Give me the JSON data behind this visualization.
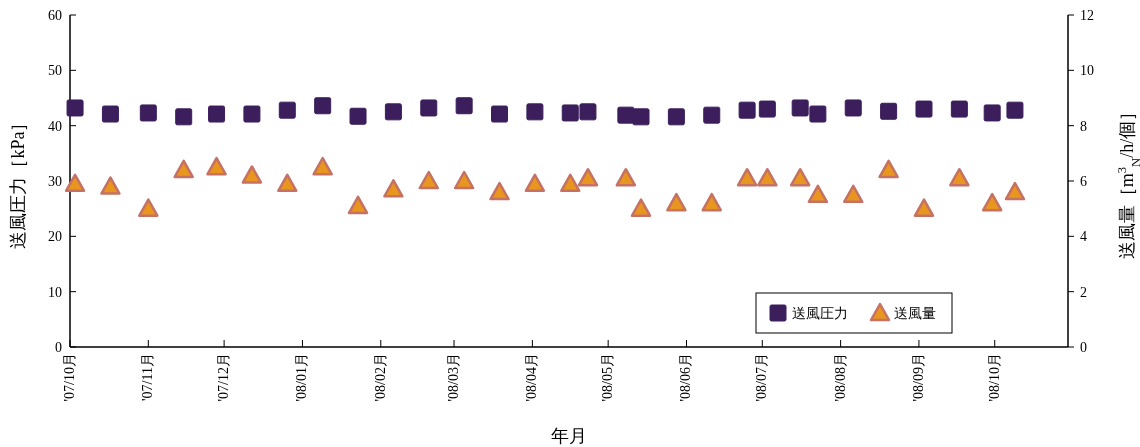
{
  "chart_data": {
    "type": "scatter",
    "xlabel": "年月",
    "ylabel": "送風圧力［kPa］",
    "y2label": "送風量［m$^{3}$$_{N}$/h/個］",
    "x": [
      "2007-10-03",
      "2007-10-17",
      "2007-11-01",
      "2007-11-15",
      "2007-11-28",
      "2007-12-12",
      "2007-12-26",
      "2008-01-09",
      "2008-01-23",
      "2008-02-06",
      "2008-02-20",
      "2008-03-05",
      "2008-03-19",
      "2008-04-02",
      "2008-04-16",
      "2008-04-23",
      "2008-05-08",
      "2008-05-14",
      "2008-05-28",
      "2008-06-11",
      "2008-06-25",
      "2008-07-03",
      "2008-07-16",
      "2008-07-23",
      "2008-08-06",
      "2008-08-20",
      "2008-09-03",
      "2008-09-17",
      "2008-09-30",
      "2008-10-09"
    ],
    "series": [
      {
        "name": "送風圧力",
        "color": "#3c1e5c",
        "marker": "square",
        "values": [
          43.2,
          42.1,
          42.3,
          41.6,
          42.1,
          42.1,
          42.8,
          43.6,
          41.7,
          42.5,
          43.2,
          43.6,
          42.1,
          42.5,
          42.3,
          42.5,
          41.9,
          41.6,
          41.6,
          41.9,
          42.8,
          43.0,
          43.2,
          42.1,
          43.2,
          42.6,
          43.0,
          43.0,
          42.3,
          42.8
        ]
      },
      {
        "name": "送風量",
        "color": "#e8961e",
        "marker": "triangle",
        "axis": "y2",
        "values": [
          5.9,
          5.8,
          5.0,
          6.4,
          6.5,
          6.2,
          5.9,
          6.5,
          5.1,
          5.7,
          6.0,
          6.0,
          5.6,
          5.9,
          5.9,
          6.1,
          6.1,
          5.0,
          5.2,
          5.2,
          6.1,
          6.1,
          6.1,
          5.5,
          5.5,
          6.4,
          5.0,
          6.1,
          5.2,
          5.6
        ]
      }
    ],
    "xlim": [
      "2007-10-01",
      "2008-10-30"
    ],
    "xticks": [
      {
        "value": "2007-10-01",
        "label": "'07/10月"
      },
      {
        "value": "2007-11-01",
        "label": "'07/11月"
      },
      {
        "value": "2007-12-01",
        "label": "'07/12月"
      },
      {
        "value": "2008-01-01",
        "label": "'08/01月"
      },
      {
        "value": "2008-02-01",
        "label": "'08/02月"
      },
      {
        "value": "2008-03-01",
        "label": "'08/03月"
      },
      {
        "value": "2008-04-01",
        "label": "'08/04月"
      },
      {
        "value": "2008-05-01",
        "label": "'08/05月"
      },
      {
        "value": "2008-06-01",
        "label": "'08/06月"
      },
      {
        "value": "2008-07-01",
        "label": "'08/07月"
      },
      {
        "value": "2008-08-01",
        "label": "'08/08月"
      },
      {
        "value": "2008-09-01",
        "label": "'08/09月"
      },
      {
        "value": "2008-10-01",
        "label": "'08/10月"
      }
    ],
    "ylim": [
      0,
      60
    ],
    "yticks": [
      0,
      10,
      20,
      30,
      40,
      50,
      60
    ],
    "y2lim": [
      0,
      12
    ],
    "y2ticks": [
      0,
      2,
      4,
      6,
      8,
      10,
      12
    ],
    "legend": "bottom right",
    "grid": false
  }
}
